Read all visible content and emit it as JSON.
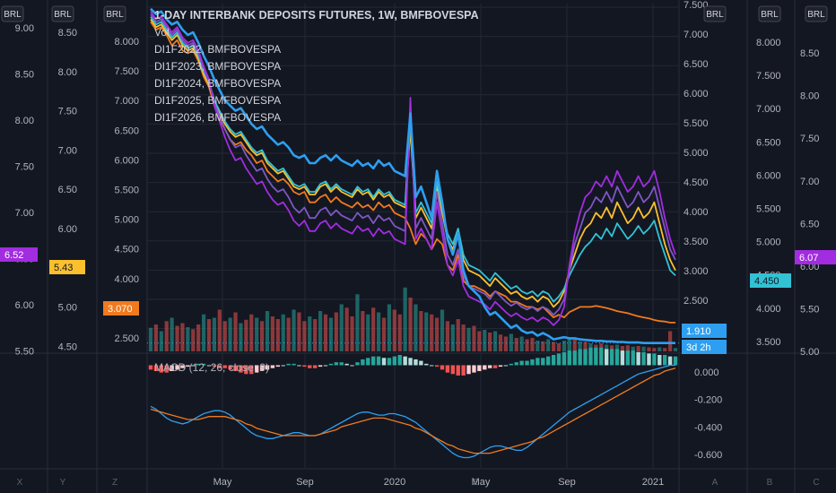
{
  "header": {
    "title": "1-DAY INTERBANK DEPOSITS FUTURES, 1W, BMFBOVESPA",
    "legend": [
      "Vol",
      "DI1F2022, BMFBOVESPA",
      "DI1F2023, BMFBOVESPA",
      "DI1F2024, BMFBOVESPA",
      "DI1F2025, BMFBOVESPA",
      "DI1F2026, BMFBOVESPA"
    ],
    "macd_label": "MACD (12, 26, close, 9)"
  },
  "colors": {
    "background": "#131722",
    "grid": "#232834",
    "text": "#b2b5be",
    "blue": "#2e9ff0",
    "orange": "#f07a1e",
    "yellow": "#fbc02d",
    "cyan": "#32c2d4",
    "violet": "#7e57c2",
    "purple": "#a12ce0",
    "vol_up": "#26a69a",
    "vol_down": "#ef5350",
    "macd_line": "#2e9ff0",
    "signal_line": "#f07a1e",
    "hist_up_strong": "#26a69a",
    "hist_up_weak": "#b2dfdb",
    "hist_down_strong": "#ef5350",
    "hist_down_weak": "#ffcdd2"
  },
  "axes": {
    "currency": "BRL",
    "scale_badges": [
      "BRL",
      "BRL",
      "BRL",
      "BRL",
      "BRL",
      "BRL"
    ],
    "left1_ticks": [
      "9.00",
      "8.50",
      "8.00",
      "7.50",
      "7.00",
      "6.50",
      "6.00",
      "5.50"
    ],
    "left2_ticks": [
      "8.50",
      "8.00",
      "7.50",
      "7.00",
      "6.50",
      "6.00",
      "5.50",
      "5.00",
      "4.50"
    ],
    "left3_ticks": [
      "8.000",
      "7.500",
      "7.000",
      "6.500",
      "6.000",
      "5.500",
      "5.000",
      "4.500",
      "4.000",
      "3.500",
      "2.500"
    ],
    "right1_ticks": [
      "7.500",
      "7.000",
      "6.500",
      "6.000",
      "5.500",
      "5.000",
      "4.500",
      "4.000",
      "3.500",
      "3.000",
      "2.500",
      "2.000"
    ],
    "right2_ticks": [
      "8.000",
      "7.500",
      "7.000",
      "6.500",
      "6.000",
      "5.500",
      "5.000",
      "4.500",
      "4.000",
      "3.500"
    ],
    "right3_ticks": [
      "8.50",
      "8.00",
      "7.50",
      "7.00",
      "6.50",
      "6.00",
      "5.50",
      "5.00"
    ],
    "macd_ticks": [
      "0.000",
      "-0.200",
      "-0.400",
      "-0.600"
    ],
    "x_ticks": [
      "May",
      "Sep",
      "2020",
      "May",
      "Sep",
      "2021"
    ],
    "bottom_letters": [
      "X",
      "Y",
      "Z",
      "Z",
      "A",
      "B",
      "C"
    ]
  },
  "badges": {
    "left1": "6.52",
    "left2": "5.43",
    "left3": "3.070",
    "right1": "1.910",
    "right1_time": "3d 2h",
    "right2": "4.450",
    "right3": "6.07"
  },
  "chart_data": {
    "type": "line",
    "title": "1-DAY INTERBANK DEPOSITS FUTURES, 1W, BMFBOVESPA",
    "x": [
      0,
      1,
      2,
      3,
      4,
      5,
      6,
      7,
      8,
      9,
      10,
      11,
      12,
      13,
      14,
      15,
      16,
      17,
      18,
      19,
      20,
      21,
      22,
      23,
      24,
      25,
      26,
      27,
      28,
      29,
      30,
      31,
      32,
      33,
      34,
      35,
      36,
      37,
      38,
      39,
      40,
      41,
      42,
      43,
      44,
      45,
      46,
      47,
      48,
      49,
      50,
      51,
      52,
      53,
      54,
      55,
      56,
      57,
      58,
      59,
      60,
      61,
      62,
      63,
      64,
      65,
      66,
      67,
      68,
      69,
      70,
      71,
      72,
      73,
      74,
      75,
      76,
      77,
      78,
      79,
      80,
      81,
      82,
      83,
      84,
      85,
      86,
      87,
      88,
      89,
      90,
      91,
      92,
      93,
      94,
      95,
      96,
      97,
      98,
      99
    ],
    "series": [
      {
        "name": "DI1F2022, BMFBOVESPA",
        "color_key": "orange",
        "values": [
          8.05,
          7.9,
          7.95,
          7.8,
          7.6,
          7.7,
          7.5,
          7.45,
          7.5,
          7.3,
          7.0,
          6.8,
          6.45,
          6.2,
          6.0,
          5.8,
          5.7,
          5.75,
          5.6,
          5.5,
          5.35,
          5.4,
          5.2,
          5.1,
          5.0,
          5.05,
          4.95,
          4.8,
          4.75,
          4.8,
          4.6,
          4.6,
          4.7,
          4.75,
          4.6,
          4.7,
          4.6,
          4.55,
          4.5,
          4.6,
          4.5,
          4.55,
          4.45,
          4.6,
          4.5,
          4.55,
          4.4,
          4.35,
          4.3,
          4.1,
          3.8,
          4.0,
          3.9,
          3.7,
          3.9,
          3.8,
          3.4,
          3.3,
          3.6,
          3.1,
          3.0,
          3.0,
          2.95,
          2.9,
          2.8,
          2.9,
          2.85,
          2.8,
          2.7,
          2.7,
          2.65,
          2.6,
          2.6,
          2.55,
          2.6,
          2.5,
          2.4,
          2.45,
          2.4,
          2.5,
          2.55,
          2.6,
          2.6,
          2.6,
          2.62,
          2.6,
          2.58,
          2.55,
          2.52,
          2.5,
          2.48,
          2.45,
          2.42,
          2.4,
          2.38,
          2.35,
          2.33,
          2.32,
          2.3,
          2.3
        ]
      },
      {
        "name": "DI1F2023, BMFBOVESPA",
        "color_key": "yellow",
        "values": [
          8.1,
          7.95,
          8.0,
          7.85,
          7.7,
          7.8,
          7.6,
          7.5,
          7.55,
          7.35,
          7.05,
          6.85,
          6.5,
          6.3,
          6.1,
          5.95,
          5.85,
          5.9,
          5.75,
          5.6,
          5.5,
          5.55,
          5.35,
          5.25,
          5.15,
          5.2,
          5.05,
          4.9,
          4.85,
          4.9,
          4.75,
          4.75,
          4.9,
          4.95,
          4.8,
          4.9,
          4.8,
          4.75,
          4.7,
          4.85,
          4.75,
          4.8,
          4.65,
          4.8,
          4.7,
          4.75,
          4.6,
          4.55,
          4.5,
          6.0,
          4.3,
          4.5,
          4.3,
          4.1,
          4.9,
          4.4,
          3.9,
          3.7,
          4.0,
          3.5,
          3.3,
          3.25,
          3.2,
          3.1,
          3.0,
          3.15,
          3.05,
          2.95,
          2.85,
          2.9,
          2.8,
          2.75,
          2.8,
          2.7,
          2.8,
          2.75,
          2.6,
          2.7,
          2.9,
          3.3,
          3.6,
          3.9,
          4.1,
          4.2,
          4.4,
          4.3,
          4.5,
          4.3,
          4.6,
          4.4,
          4.2,
          4.3,
          4.5,
          4.3,
          4.4,
          4.6,
          4.2,
          3.8,
          3.5,
          3.3
        ]
      },
      {
        "name": "DI1F2024, BMFBOVESPA",
        "color_key": "cyan",
        "values": [
          8.15,
          8.0,
          8.05,
          7.9,
          7.75,
          7.85,
          7.65,
          7.55,
          7.6,
          7.4,
          7.1,
          6.9,
          6.55,
          6.35,
          6.15,
          6.0,
          5.9,
          5.95,
          5.8,
          5.65,
          5.55,
          5.6,
          5.4,
          5.3,
          5.2,
          5.25,
          5.1,
          4.95,
          4.9,
          4.95,
          4.8,
          4.8,
          4.95,
          5.0,
          4.85,
          4.95,
          4.85,
          4.8,
          4.75,
          4.9,
          4.8,
          4.85,
          4.7,
          4.85,
          4.75,
          4.8,
          4.65,
          4.6,
          4.55,
          6.2,
          4.4,
          4.6,
          4.4,
          4.2,
          5.0,
          4.5,
          4.0,
          3.8,
          4.1,
          3.6,
          3.4,
          3.35,
          3.3,
          3.2,
          3.1,
          3.25,
          3.15,
          3.05,
          2.95,
          3.0,
          2.9,
          2.85,
          2.9,
          2.8,
          2.9,
          2.85,
          2.7,
          2.8,
          2.95,
          3.2,
          3.4,
          3.6,
          3.75,
          3.85,
          4.0,
          3.9,
          4.1,
          3.95,
          4.2,
          4.05,
          3.9,
          4.0,
          4.15,
          4.0,
          4.1,
          4.25,
          3.9,
          3.6,
          3.3,
          3.2
        ]
      },
      {
        "name": "DI1F2025, BMFBOVESPA",
        "color_key": "violet",
        "values": [
          8.2,
          8.05,
          8.1,
          7.95,
          7.8,
          7.9,
          7.7,
          7.6,
          7.65,
          7.45,
          7.15,
          6.9,
          6.5,
          6.25,
          6.0,
          5.8,
          5.65,
          5.7,
          5.5,
          5.35,
          5.2,
          5.25,
          5.05,
          4.9,
          4.8,
          4.85,
          4.7,
          4.5,
          4.4,
          4.5,
          4.3,
          4.3,
          4.45,
          4.5,
          4.35,
          4.45,
          4.35,
          4.3,
          4.25,
          4.4,
          4.3,
          4.35,
          4.2,
          4.35,
          4.25,
          4.3,
          4.15,
          4.1,
          4.05,
          6.4,
          4.1,
          4.3,
          4.1,
          3.9,
          4.8,
          4.2,
          3.6,
          3.4,
          3.7,
          3.2,
          3.0,
          2.95,
          2.9,
          2.85,
          2.75,
          2.9,
          2.8,
          2.7,
          2.62,
          2.68,
          2.6,
          2.55,
          2.6,
          2.52,
          2.6,
          2.55,
          2.45,
          2.55,
          2.75,
          3.3,
          3.8,
          4.1,
          4.4,
          4.5,
          4.7,
          4.6,
          4.8,
          4.6,
          4.9,
          4.7,
          4.5,
          4.6,
          4.8,
          4.6,
          4.7,
          4.9,
          4.5,
          4.1,
          3.7,
          3.5
        ]
      },
      {
        "name": "DI1F2026, BMFBOVESPA",
        "color_key": "purple",
        "values": [
          8.25,
          8.1,
          8.15,
          8.0,
          7.85,
          7.95,
          7.75,
          7.65,
          7.7,
          7.5,
          7.2,
          6.95,
          6.45,
          6.15,
          5.85,
          5.6,
          5.4,
          5.45,
          5.25,
          5.1,
          4.95,
          5.0,
          4.8,
          4.65,
          4.55,
          4.6,
          4.45,
          4.25,
          4.15,
          4.25,
          4.05,
          4.05,
          4.2,
          4.25,
          4.1,
          4.2,
          4.1,
          4.05,
          4.0,
          4.15,
          4.05,
          4.1,
          3.95,
          4.1,
          4.0,
          4.05,
          3.9,
          3.85,
          3.8,
          6.6,
          3.9,
          4.1,
          3.9,
          3.7,
          4.6,
          4.0,
          3.4,
          3.2,
          3.5,
          3.0,
          2.8,
          2.75,
          2.7,
          2.65,
          2.55,
          2.7,
          2.6,
          2.5,
          2.42,
          2.48,
          2.4,
          2.35,
          2.4,
          2.32,
          2.4,
          2.35,
          2.25,
          2.35,
          2.6,
          3.4,
          4.0,
          4.4,
          4.7,
          4.8,
          5.0,
          4.9,
          5.1,
          4.9,
          5.2,
          5.0,
          4.8,
          4.9,
          5.1,
          4.9,
          5.0,
          5.2,
          4.8,
          4.3,
          3.9,
          3.6
        ]
      },
      {
        "name": "Vol",
        "color_key": "blue",
        "values": [
          8.3,
          8.2,
          8.25,
          8.1,
          8.0,
          8.05,
          7.9,
          7.8,
          7.85,
          7.65,
          7.4,
          7.2,
          6.95,
          6.75,
          6.55,
          6.45,
          6.35,
          6.4,
          6.25,
          6.1,
          6.0,
          6.05,
          5.9,
          5.8,
          5.7,
          5.75,
          5.65,
          5.5,
          5.45,
          5.5,
          5.35,
          5.35,
          5.45,
          5.5,
          5.4,
          5.5,
          5.4,
          5.35,
          5.3,
          5.4,
          5.3,
          5.35,
          5.25,
          5.4,
          5.3,
          5.35,
          5.2,
          5.15,
          5.1,
          6.3,
          4.7,
          4.9,
          4.6,
          4.3,
          5.2,
          4.6,
          3.9,
          3.6,
          4.0,
          3.3,
          3.0,
          2.9,
          2.8,
          2.6,
          2.45,
          2.5,
          2.4,
          2.3,
          2.2,
          2.25,
          2.15,
          2.1,
          2.12,
          2.05,
          2.1,
          2.05,
          1.98,
          2.0,
          2.02,
          2.0,
          2.0,
          1.98,
          1.97,
          1.96,
          1.95,
          1.95,
          1.94,
          1.94,
          1.93,
          1.93,
          1.92,
          1.92,
          1.92,
          1.91,
          1.91,
          1.91,
          1.91,
          1.91,
          1.91,
          1.91
        ]
      }
    ],
    "volume": [
      0.35,
      0.4,
      0.3,
      0.45,
      0.5,
      0.38,
      0.42,
      0.36,
      0.33,
      0.4,
      0.55,
      0.48,
      0.5,
      0.62,
      0.45,
      0.5,
      0.58,
      0.42,
      0.47,
      0.55,
      0.5,
      0.45,
      0.6,
      0.52,
      0.48,
      0.55,
      0.5,
      0.62,
      0.58,
      0.45,
      0.52,
      0.48,
      0.6,
      0.55,
      0.5,
      0.58,
      0.7,
      0.65,
      0.52,
      0.85,
      0.6,
      0.55,
      0.65,
      0.58,
      0.5,
      0.7,
      0.62,
      0.55,
      0.95,
      0.8,
      0.7,
      0.6,
      0.58,
      0.55,
      0.5,
      0.62,
      0.45,
      0.4,
      0.48,
      0.4,
      0.35,
      0.38,
      0.3,
      0.32,
      0.28,
      0.3,
      0.25,
      0.22,
      0.26,
      0.2,
      0.22,
      0.18,
      0.2,
      0.16,
      0.15,
      0.18,
      0.14,
      0.12,
      0.16,
      0.2,
      0.18,
      0.15,
      0.14,
      0.12,
      0.1,
      0.12,
      0.1,
      0.09,
      0.1,
      0.08,
      0.09,
      0.07,
      0.08,
      0.07,
      0.06,
      0.05,
      0.06,
      0.05,
      0.3,
      0.05
    ],
    "volume_up": [
      true,
      false,
      true,
      false,
      true,
      false,
      false,
      true,
      false,
      false,
      true,
      false,
      true,
      false,
      false,
      true,
      false,
      true,
      false,
      false,
      true,
      false,
      true,
      false,
      false,
      true,
      false,
      true,
      false,
      false,
      true,
      false,
      true,
      false,
      true,
      false,
      true,
      false,
      false,
      true,
      false,
      true,
      false,
      true,
      false,
      true,
      false,
      false,
      true,
      false,
      true,
      false,
      true,
      false,
      false,
      true,
      false,
      true,
      false,
      false,
      true,
      false,
      false,
      true,
      false,
      true,
      false,
      false,
      true,
      false,
      true,
      false,
      false,
      true,
      false,
      true,
      false,
      false,
      true,
      true,
      false,
      true,
      false,
      true,
      false,
      false,
      true,
      false,
      true,
      false,
      false,
      true,
      false,
      true,
      false,
      false,
      true,
      false,
      false,
      true
    ],
    "macd_histogram": [
      -0.03,
      -0.04,
      -0.05,
      -0.05,
      -0.04,
      -0.03,
      -0.02,
      -0.01,
      0.0,
      0.01,
      0.01,
      0.0,
      -0.01,
      -0.02,
      -0.02,
      -0.03,
      -0.04,
      -0.05,
      -0.06,
      -0.06,
      -0.05,
      -0.04,
      -0.03,
      -0.02,
      -0.01,
      0.0,
      0.01,
      0.01,
      0.0,
      -0.01,
      -0.02,
      -0.02,
      -0.01,
      0.0,
      0.01,
      0.02,
      0.02,
      0.01,
      0.0,
      0.02,
      0.04,
      0.05,
      0.06,
      0.06,
      0.05,
      0.05,
      0.06,
      0.07,
      0.06,
      0.05,
      0.04,
      0.03,
      0.01,
      0.0,
      -0.01,
      -0.03,
      -0.05,
      -0.06,
      -0.07,
      -0.07,
      -0.06,
      -0.05,
      -0.04,
      -0.03,
      -0.02,
      -0.02,
      -0.01,
      0.0,
      0.01,
      0.02,
      0.03,
      0.03,
      0.04,
      0.05,
      0.05,
      0.06,
      0.07,
      0.08,
      0.09,
      0.1,
      0.1,
      0.11,
      0.11,
      0.12,
      0.12,
      0.12,
      0.11,
      0.11,
      0.11,
      0.1,
      0.1,
      0.1,
      0.09,
      0.09,
      0.08,
      0.08,
      0.07,
      0.07,
      0.06,
      0.06
    ],
    "macd_line": [
      -0.28,
      -0.3,
      -0.33,
      -0.36,
      -0.38,
      -0.39,
      -0.4,
      -0.39,
      -0.37,
      -0.35,
      -0.33,
      -0.32,
      -0.31,
      -0.31,
      -0.32,
      -0.34,
      -0.37,
      -0.4,
      -0.43,
      -0.46,
      -0.48,
      -0.49,
      -0.5,
      -0.5,
      -0.49,
      -0.48,
      -0.47,
      -0.46,
      -0.46,
      -0.47,
      -0.48,
      -0.48,
      -0.47,
      -0.45,
      -0.43,
      -0.41,
      -0.39,
      -0.37,
      -0.35,
      -0.33,
      -0.32,
      -0.32,
      -0.33,
      -0.34,
      -0.34,
      -0.33,
      -0.33,
      -0.34,
      -0.35,
      -0.37,
      -0.39,
      -0.42,
      -0.45,
      -0.48,
      -0.51,
      -0.54,
      -0.57,
      -0.6,
      -0.62,
      -0.63,
      -0.63,
      -0.62,
      -0.6,
      -0.58,
      -0.56,
      -0.55,
      -0.55,
      -0.56,
      -0.57,
      -0.58,
      -0.58,
      -0.56,
      -0.53,
      -0.5,
      -0.47,
      -0.44,
      -0.41,
      -0.38,
      -0.35,
      -0.32,
      -0.3,
      -0.28,
      -0.26,
      -0.24,
      -0.22,
      -0.2,
      -0.18,
      -0.16,
      -0.14,
      -0.12,
      -0.1,
      -0.08,
      -0.06,
      -0.05,
      -0.04,
      -0.03,
      -0.02,
      -0.01,
      0.0,
      0.0
    ],
    "signal_line": [
      -0.3,
      -0.31,
      -0.32,
      -0.33,
      -0.34,
      -0.35,
      -0.36,
      -0.37,
      -0.37,
      -0.37,
      -0.36,
      -0.35,
      -0.35,
      -0.35,
      -0.35,
      -0.36,
      -0.37,
      -0.38,
      -0.4,
      -0.41,
      -0.43,
      -0.44,
      -0.45,
      -0.46,
      -0.47,
      -0.48,
      -0.48,
      -0.48,
      -0.48,
      -0.48,
      -0.48,
      -0.48,
      -0.47,
      -0.46,
      -0.45,
      -0.44,
      -0.42,
      -0.41,
      -0.4,
      -0.39,
      -0.38,
      -0.37,
      -0.36,
      -0.36,
      -0.36,
      -0.37,
      -0.38,
      -0.39,
      -0.4,
      -0.41,
      -0.43,
      -0.44,
      -0.46,
      -0.48,
      -0.5,
      -0.52,
      -0.54,
      -0.55,
      -0.57,
      -0.58,
      -0.59,
      -0.6,
      -0.6,
      -0.6,
      -0.6,
      -0.59,
      -0.58,
      -0.57,
      -0.56,
      -0.55,
      -0.54,
      -0.53,
      -0.52,
      -0.5,
      -0.49,
      -0.47,
      -0.45,
      -0.43,
      -0.41,
      -0.39,
      -0.37,
      -0.35,
      -0.33,
      -0.31,
      -0.29,
      -0.27,
      -0.25,
      -0.23,
      -0.21,
      -0.19,
      -0.17,
      -0.15,
      -0.13,
      -0.11,
      -0.09,
      -0.07,
      -0.06,
      -0.04,
      -0.03,
      -0.02
    ],
    "xlabel": "",
    "ylabel": "",
    "grid": true,
    "legend": "top-left"
  }
}
